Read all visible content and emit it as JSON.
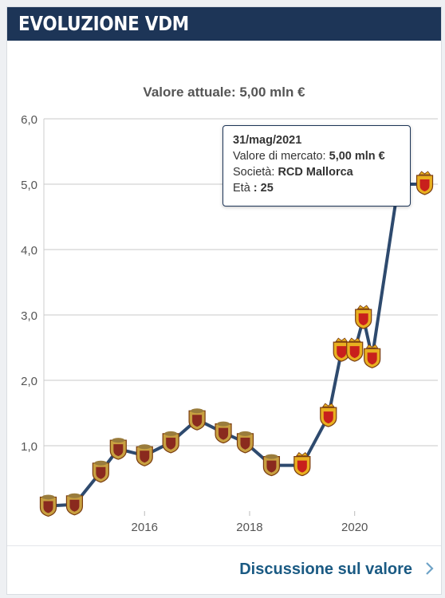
{
  "header": {
    "title": "EVOLUZIONE VDM"
  },
  "current_value": "Valore attuale: 5,00 mln €",
  "chart_data": {
    "type": "line",
    "title": "Valore attuale: 5,00 mln €",
    "xlabel": "",
    "ylabel": "",
    "ylim": [
      0,
      6
    ],
    "yticks": [
      "",
      "1,0",
      "2,0",
      "3,0",
      "4,0",
      "5,0",
      "6,0"
    ],
    "xticks": [
      "2016",
      "2018",
      "2020"
    ],
    "xlim": [
      "2014-02",
      "2021-08"
    ],
    "grid": true,
    "line_color": "#2e4a6e",
    "x": [
      "2014-03",
      "2014-09",
      "2015-03",
      "2015-07",
      "2016-01",
      "2016-07",
      "2017-01",
      "2017-07",
      "2017-12",
      "2018-06",
      "2019-01",
      "2019-07",
      "2019-10",
      "2020-01",
      "2020-03",
      "2020-05",
      "2020-11",
      "2021-05"
    ],
    "values": [
      0.08,
      0.1,
      0.6,
      0.95,
      0.85,
      1.05,
      1.4,
      1.2,
      1.05,
      0.7,
      0.7,
      1.45,
      2.45,
      2.45,
      2.95,
      2.35,
      5.0,
      5.0
    ],
    "markers": [
      "club-crest",
      "club-crest",
      "club-crest",
      "club-crest",
      "club-crest",
      "club-crest",
      "club-crest",
      "club-crest",
      "club-crest",
      "club-crest",
      "mallorca-crest",
      "mallorca-crest",
      "mallorca-crest",
      "mallorca-crest",
      "mallorca-crest",
      "mallorca-crest",
      "mallorca-crest",
      "mallorca-crest"
    ],
    "tooltip": {
      "date": "31/mag/2021",
      "value_label": "Valore di mercato:",
      "value": "5,00 mln €",
      "club_label": "Società:",
      "club": "RCD Mallorca",
      "age_label": "Età",
      "age": "25"
    }
  },
  "footer": {
    "link_label": "Discussione sul valore"
  },
  "colors": {
    "header_bg": "#1d3557",
    "link": "#1a5a83",
    "line": "#2e4a6e",
    "grid": "#d4d4d4"
  }
}
